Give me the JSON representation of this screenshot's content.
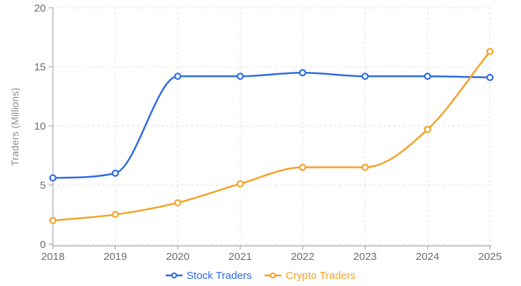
{
  "chart_data": {
    "type": "line",
    "title": "",
    "xlabel": "",
    "ylabel": "Traders (Millions)",
    "categories": [
      "2018",
      "2019",
      "2020",
      "2021",
      "2022",
      "2023",
      "2024",
      "2025"
    ],
    "series": [
      {
        "name": "Stock Traders",
        "color": "#2d6ae2",
        "values": [
          5.6,
          6,
          14.2,
          14.2,
          14.5,
          14.2,
          14.2,
          14.1
        ]
      },
      {
        "name": "Crypto Traders",
        "color": "#f5a124",
        "values": [
          2,
          2.5,
          3.5,
          5.1,
          6.5,
          6.5,
          9.7,
          16.3
        ]
      }
    ],
    "ylim": [
      0,
      20
    ],
    "yticks": [
      0,
      5,
      10,
      15,
      20
    ],
    "grid": "dashed",
    "line_style": "smooth-monotone",
    "marker": "hollow-circle",
    "legend_position": "bottom"
  },
  "colors": {
    "background": "#ffffff",
    "axis_line": "#b0b0b0",
    "grid_line": "#dedede",
    "tick_text": "#6e6e6e",
    "axis_title_text": "#8c8c8c"
  }
}
